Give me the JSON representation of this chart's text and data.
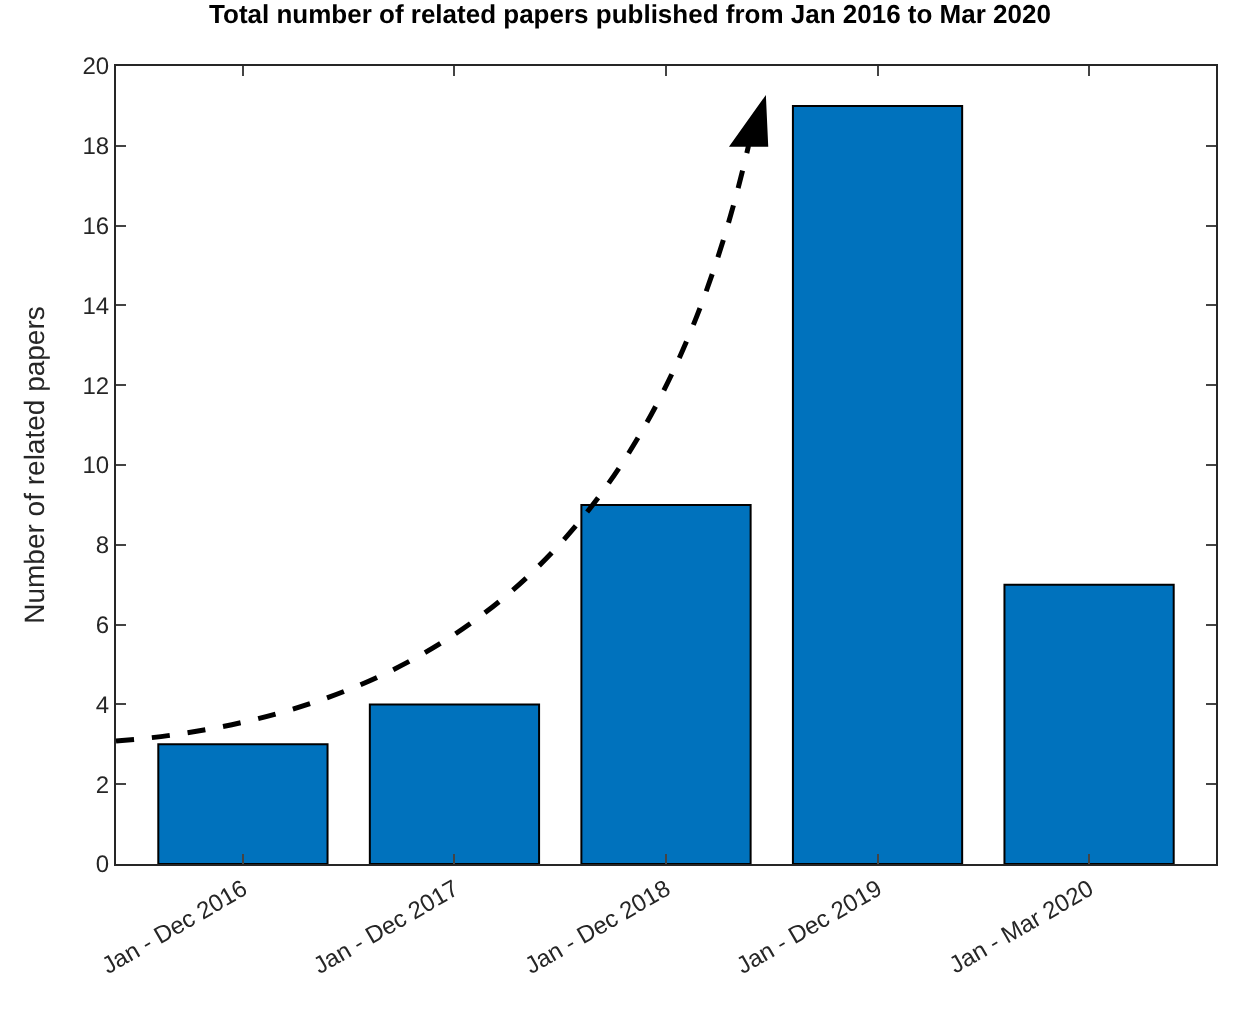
{
  "chart_data": {
    "type": "bar",
    "title": "Total number of related papers published from Jan 2016 to Mar 2020",
    "ylabel": "Number of related papers",
    "categories": [
      "Jan - Dec 2016",
      "Jan - Dec 2017",
      "Jan - Dec 2018",
      "Jan - Dec 2019",
      "Jan - Mar 2020"
    ],
    "values": [
      3,
      4,
      9,
      19,
      7
    ],
    "color": "#0072bd",
    "ylim": [
      0,
      20
    ],
    "yticks": [
      0,
      2,
      4,
      6,
      8,
      10,
      12,
      14,
      16,
      18,
      20
    ]
  }
}
